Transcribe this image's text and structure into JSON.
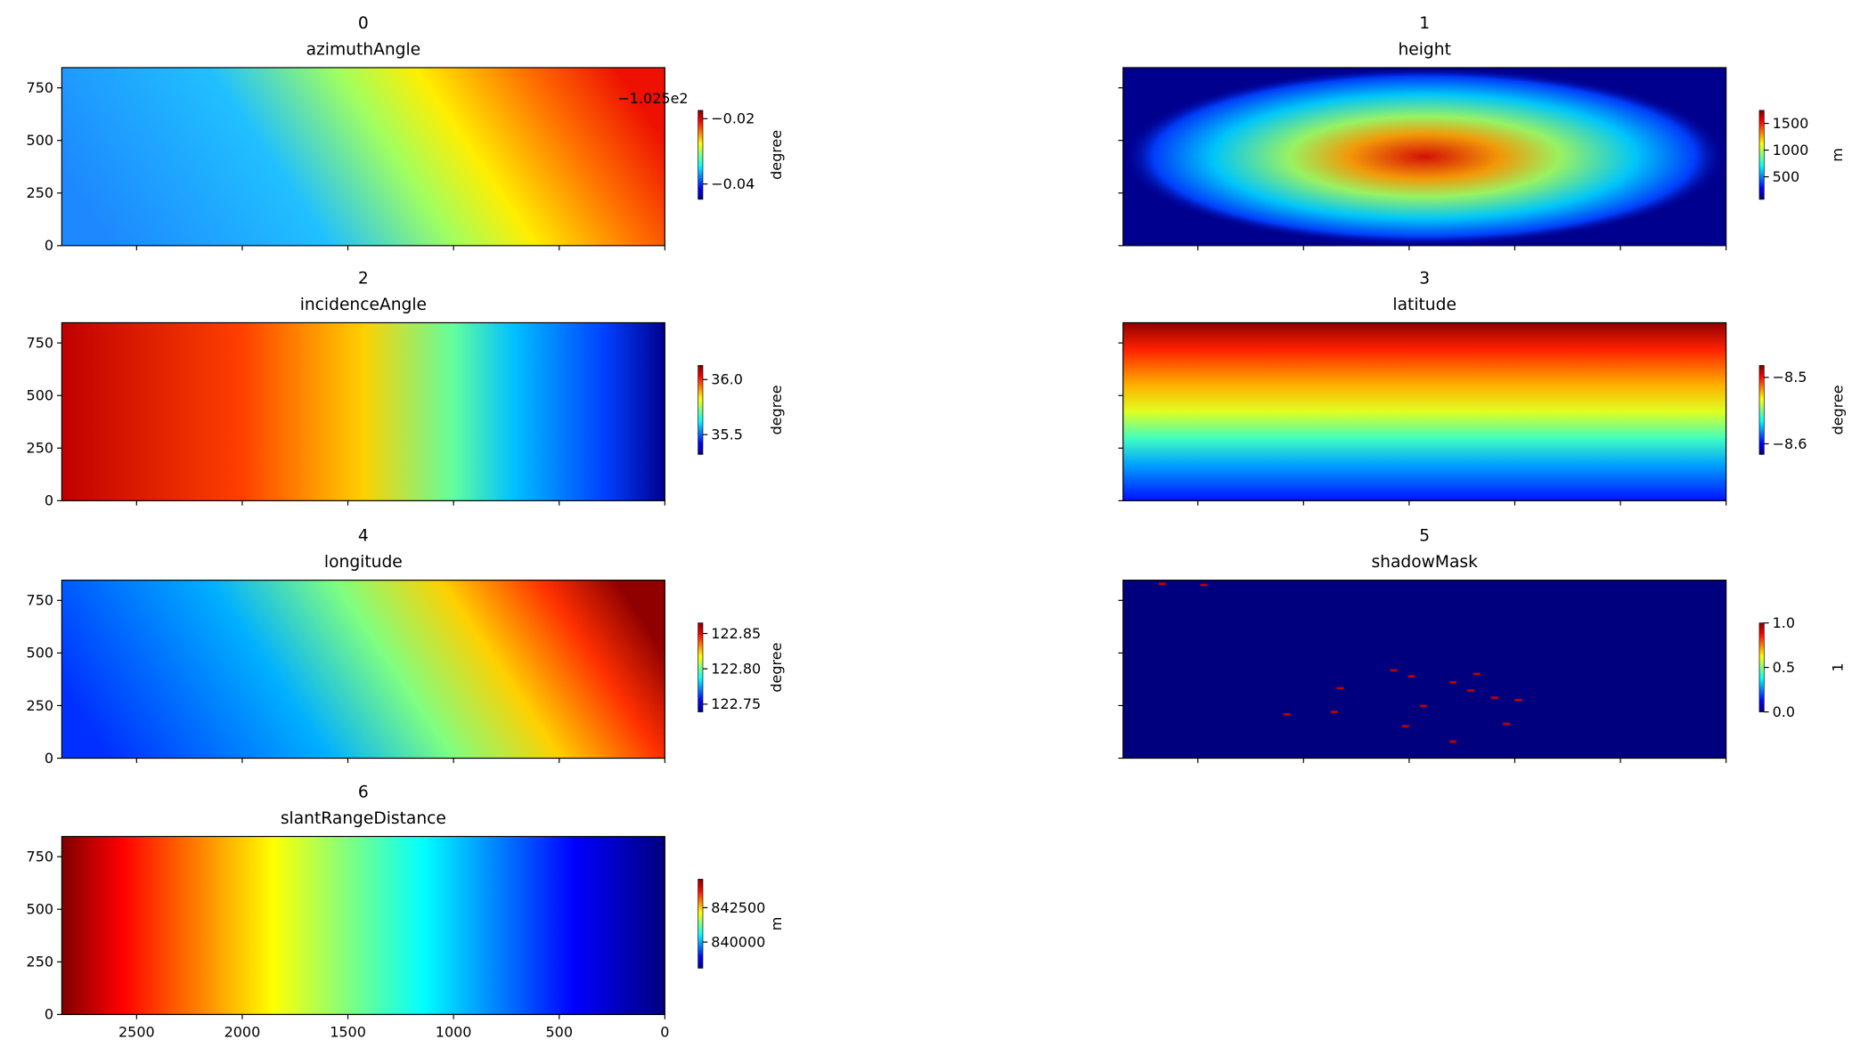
{
  "chart_data": [
    {
      "type": "heatmap",
      "panel": "0",
      "title": "azimuthAngle",
      "colorbar_label": "degree",
      "colorbar_offset": "−1.025e2",
      "clim": [
        -0.0447,
        -0.01745
      ],
      "colorbar_ticks": [
        {
          "value": -0.02,
          "label": "−0.02"
        },
        {
          "value": -0.04,
          "label": "−0.04"
        }
      ],
      "xlim": [
        2854,
        0
      ],
      "ylim": [
        846,
        0
      ],
      "xticks": [
        2500,
        2000,
        1500,
        1000,
        500,
        0
      ],
      "yticks": [
        0,
        250,
        500,
        750
      ]
    },
    {
      "type": "heatmap",
      "panel": "1",
      "title": "height",
      "colorbar_label": "m",
      "clim": [
        78,
        1744
      ],
      "colorbar_ticks": [
        1500,
        1000,
        500
      ],
      "xlim": [
        2854,
        0
      ],
      "ylim": [
        846,
        0
      ],
      "xticks": [
        2500,
        2000,
        1500,
        1000,
        500,
        0
      ],
      "yticks": [
        0,
        250,
        500,
        750
      ]
    },
    {
      "type": "heatmap",
      "panel": "2",
      "title": "incidenceAngle",
      "colorbar_label": "degree",
      "clim": [
        35.32,
        36.128
      ],
      "colorbar_ticks": [
        {
          "value": 36,
          "label": "36.0"
        },
        35.5
      ],
      "xlim": [
        2854,
        0
      ],
      "ylim": [
        846,
        0
      ],
      "xticks": [
        2500,
        2000,
        1500,
        1000,
        500,
        0
      ],
      "yticks": [
        0,
        250,
        500,
        750
      ]
    },
    {
      "type": "heatmap",
      "panel": "3",
      "title": "latitude",
      "colorbar_label": "degree",
      "clim": [
        -8.616,
        -8.482
      ],
      "colorbar_ticks": [
        {
          "value": -8.5,
          "label": "−8.5"
        },
        {
          "value": -8.6,
          "label": "−8.6"
        }
      ],
      "xlim": [
        2854,
        0
      ],
      "ylim": [
        846,
        0
      ],
      "xticks": [
        2500,
        2000,
        1500,
        1000,
        500,
        0
      ],
      "yticks": [
        0,
        250,
        500,
        750
      ]
    },
    {
      "type": "heatmap",
      "panel": "4",
      "title": "longitude",
      "colorbar_label": "degree",
      "clim": [
        122.739,
        122.865
      ],
      "colorbar_ticks": [
        122.85,
        {
          "value": 122.8,
          "label": "122.80"
        },
        122.75
      ],
      "xlim": [
        2854,
        0
      ],
      "ylim": [
        846,
        0
      ],
      "xticks": [
        2500,
        2000,
        1500,
        1000,
        500,
        0
      ],
      "yticks": [
        0,
        250,
        500,
        750
      ]
    },
    {
      "type": "heatmap",
      "panel": "5",
      "title": "shadowMask",
      "colorbar_label": "1",
      "clim": [
        0,
        1
      ],
      "colorbar_ticks": [
        {
          "value": 1,
          "label": "1.0"
        },
        0.5,
        {
          "value": 0,
          "label": "0.0"
        }
      ],
      "xlim": [
        2854,
        0
      ],
      "ylim": [
        846,
        0
      ],
      "xticks": [
        2500,
        2000,
        1500,
        1000,
        500,
        0
      ],
      "yticks": [
        0,
        250,
        500,
        750
      ]
    },
    {
      "type": "heatmap",
      "panel": "6",
      "title": "slantRangeDistance",
      "colorbar_label": "m",
      "clim": [
        838103,
        844569
      ],
      "colorbar_ticks": [
        842500,
        840000
      ],
      "xlim": [
        2854,
        0
      ],
      "ylim": [
        846,
        0
      ],
      "xticks": [
        2500,
        2000,
        1500,
        1000,
        500,
        0
      ],
      "yticks": [
        0,
        250,
        500,
        750
      ]
    }
  ]
}
